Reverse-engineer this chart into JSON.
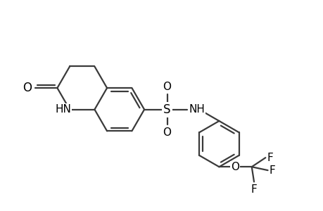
{
  "bg_color": "#ffffff",
  "bond_color": "#3a3a3a",
  "bond_width": 1.6,
  "fig_width": 4.6,
  "fig_height": 3.0,
  "dpi": 100,
  "xlim": [
    0,
    10
  ],
  "ylim": [
    0,
    6.5
  ]
}
